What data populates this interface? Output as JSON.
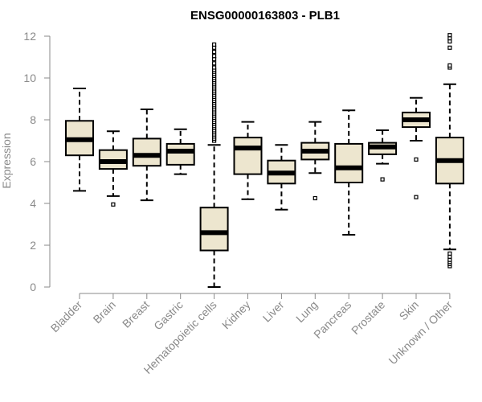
{
  "chart_data": {
    "type": "boxplot",
    "title": "ENSG00000163803 - PLB1",
    "xlabel": "",
    "ylabel": "Expression",
    "ylim": [
      0,
      12
    ],
    "yticks": [
      0,
      2,
      4,
      6,
      8,
      10,
      12
    ],
    "grid": false,
    "box_fill": "#ede6cf",
    "box_stroke": "#000000",
    "categories": [
      "Bladder",
      "Brain",
      "Breast",
      "Gastric",
      "Hematopoietic cells",
      "Kidney",
      "Liver",
      "Lung",
      "Pancreas",
      "Prostate",
      "Skin",
      "Unknown / Other"
    ],
    "boxes": [
      {
        "category": "Bladder",
        "min": 4.6,
        "q1": 6.3,
        "median": 7.05,
        "q3": 7.95,
        "max": 9.5,
        "outliers": []
      },
      {
        "category": "Brain",
        "min": 4.35,
        "q1": 5.65,
        "median": 6.0,
        "q3": 6.55,
        "max": 7.45,
        "outliers": [
          3.95
        ]
      },
      {
        "category": "Breast",
        "min": 4.15,
        "q1": 5.8,
        "median": 6.3,
        "q3": 7.1,
        "max": 8.5,
        "outliers": []
      },
      {
        "category": "Gastric",
        "min": 5.4,
        "q1": 5.85,
        "median": 6.5,
        "q3": 6.85,
        "max": 7.55,
        "outliers": []
      },
      {
        "category": "Hematopoietic cells",
        "min": 0.0,
        "q1": 1.75,
        "median": 2.6,
        "q3": 3.8,
        "max": 6.8,
        "outliers": [
          7.0,
          7.1,
          7.2,
          7.3,
          7.4,
          7.5,
          7.6,
          7.7,
          7.8,
          7.9,
          8.0,
          8.1,
          8.2,
          8.3,
          8.4,
          8.5,
          8.6,
          8.7,
          8.8,
          8.9,
          9.0,
          9.1,
          9.2,
          9.3,
          9.4,
          9.5,
          9.6,
          9.7,
          9.8,
          9.9,
          10.0,
          10.1,
          10.2,
          10.3,
          10.4,
          10.5,
          10.7,
          10.9,
          11.05,
          11.25,
          11.45,
          11.6
        ]
      },
      {
        "category": "Kidney",
        "min": 4.2,
        "q1": 5.4,
        "median": 6.65,
        "q3": 7.15,
        "max": 7.9,
        "outliers": []
      },
      {
        "category": "Liver",
        "min": 3.7,
        "q1": 4.95,
        "median": 5.45,
        "q3": 6.05,
        "max": 6.8,
        "outliers": []
      },
      {
        "category": "Lung",
        "min": 5.45,
        "q1": 6.1,
        "median": 6.5,
        "q3": 6.9,
        "max": 7.9,
        "outliers": [
          4.25
        ]
      },
      {
        "category": "Pancreas",
        "min": 2.5,
        "q1": 5.0,
        "median": 5.7,
        "q3": 6.85,
        "max": 8.45,
        "outliers": []
      },
      {
        "category": "Prostate",
        "min": 5.9,
        "q1": 6.35,
        "median": 6.7,
        "q3": 6.9,
        "max": 7.5,
        "outliers": [
          5.15
        ]
      },
      {
        "category": "Skin",
        "min": 7.0,
        "q1": 7.65,
        "median": 8.0,
        "q3": 8.35,
        "max": 9.05,
        "outliers": [
          6.1,
          4.3
        ]
      },
      {
        "category": "Unknown / Other",
        "min": 1.8,
        "q1": 4.95,
        "median": 6.05,
        "q3": 7.15,
        "max": 9.7,
        "outliers": [
          1.0,
          1.1,
          1.2,
          1.3,
          1.45,
          1.6,
          10.5,
          10.6,
          11.45,
          11.75,
          11.9,
          12.05
        ]
      }
    ]
  }
}
